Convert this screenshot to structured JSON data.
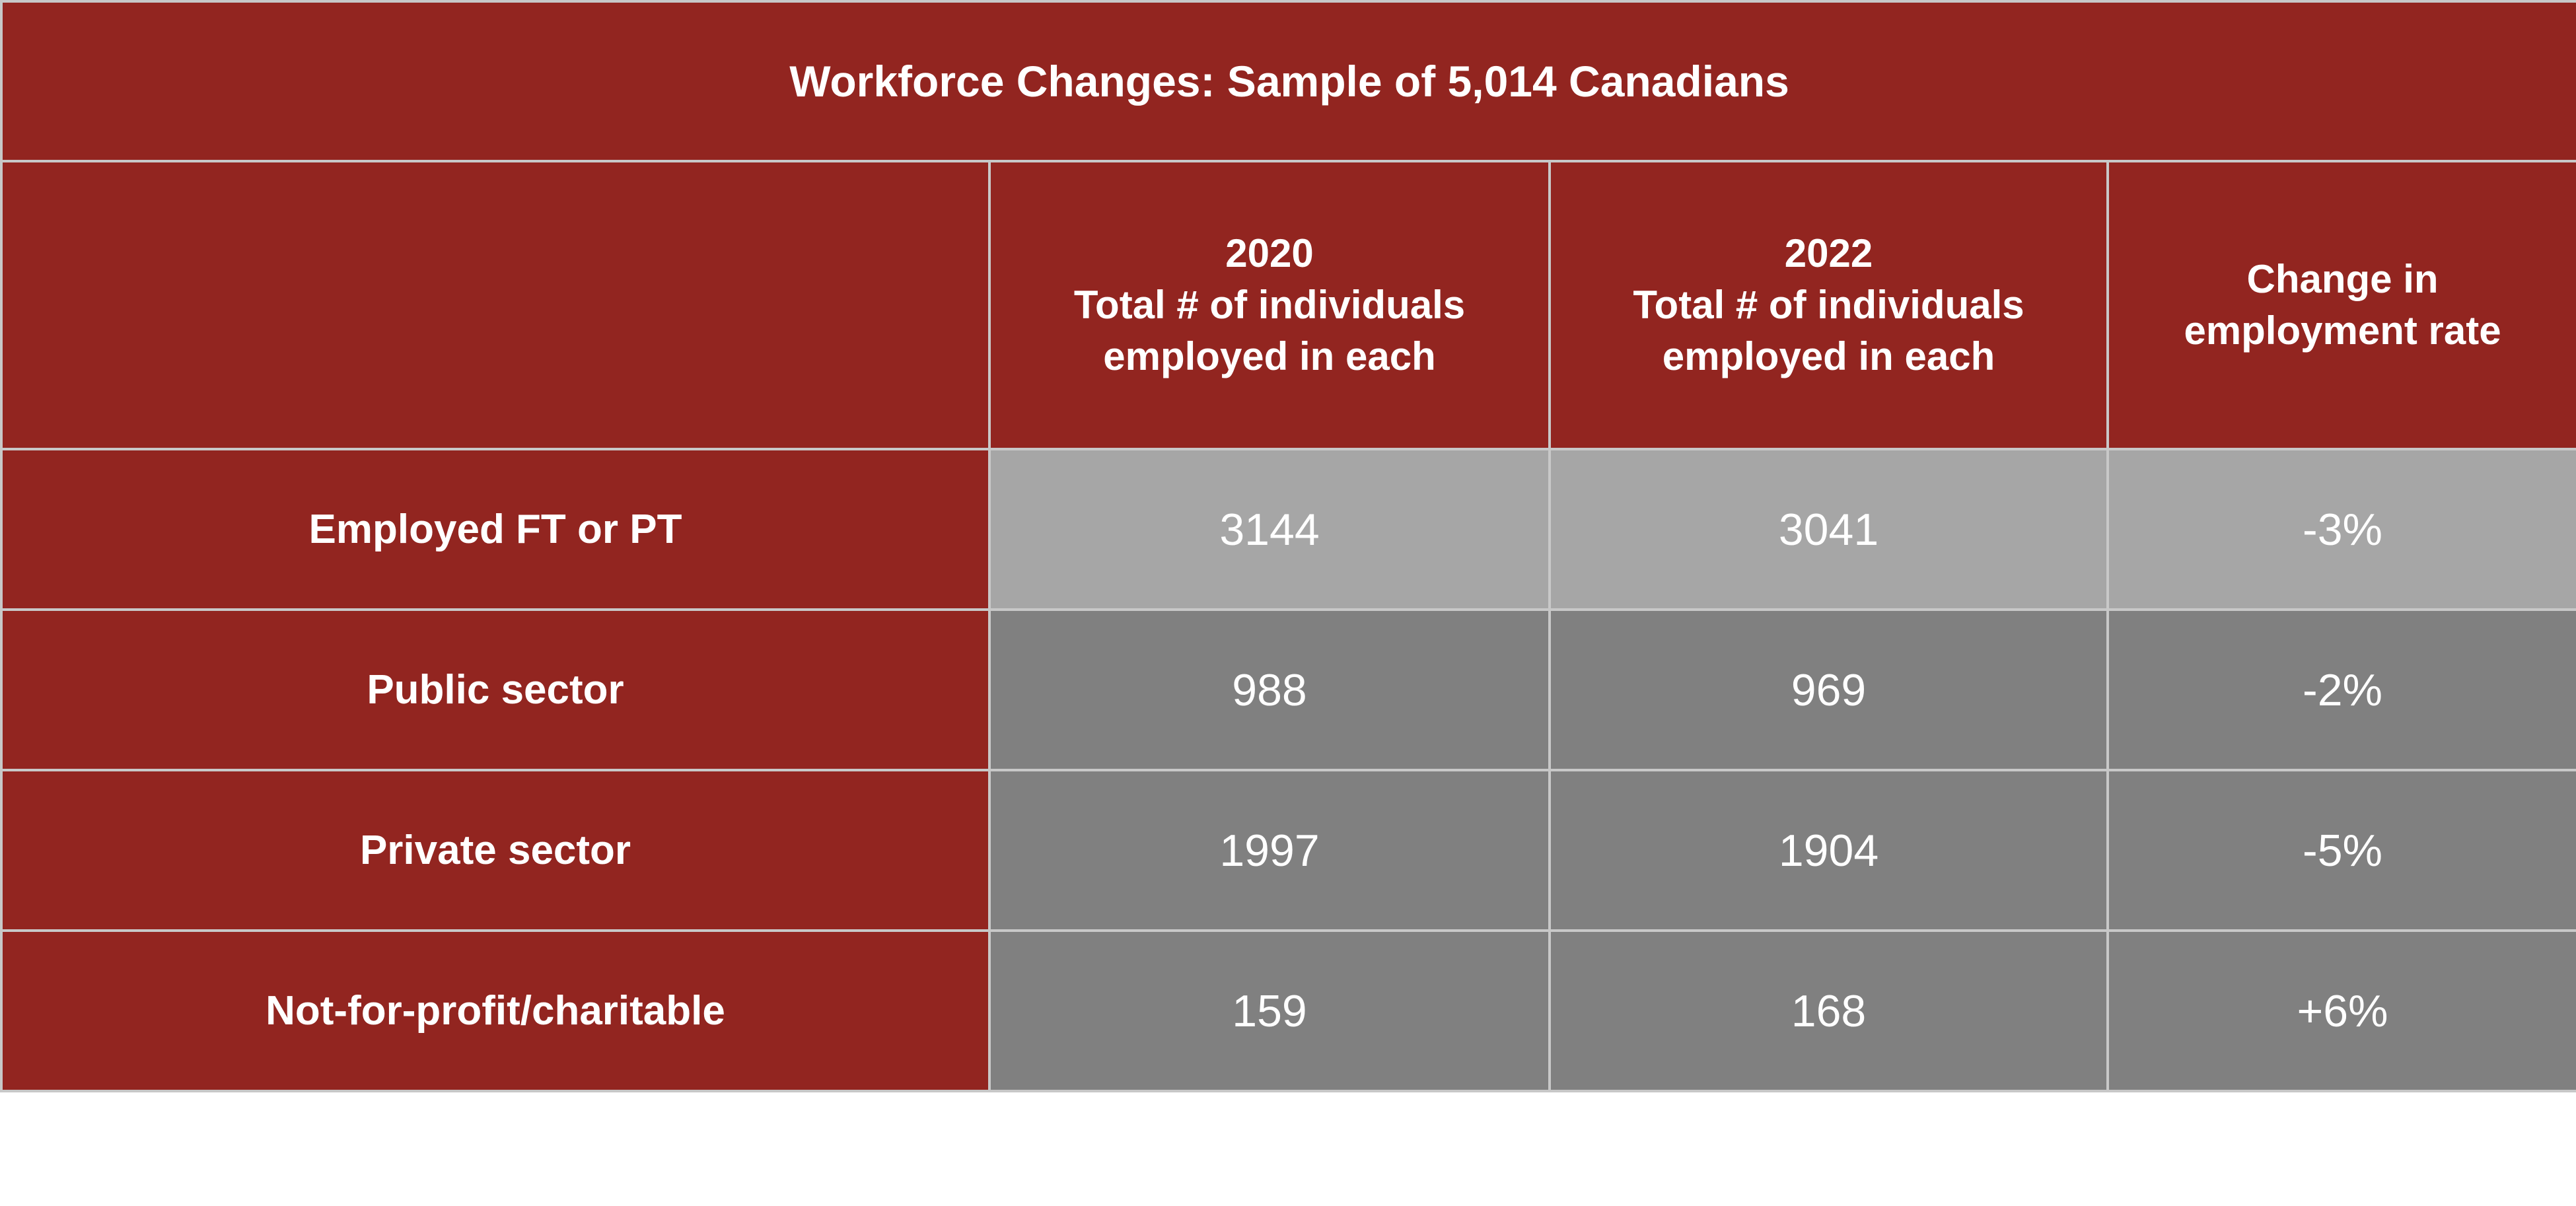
{
  "table": {
    "title": "Workforce Changes: Sample of 5,014 Canadians",
    "headers": [
      {
        "lines": []
      },
      {
        "lines": [
          "2020",
          "Total # of individuals",
          "employed in each"
        ]
      },
      {
        "lines": [
          "2022",
          "Total # of individuals",
          "employed in each"
        ]
      },
      {
        "lines": [
          "Change in",
          "employment rate"
        ]
      }
    ],
    "rows": [
      {
        "label": "Employed FT or PT",
        "y2020": "3144",
        "y2022": "3041",
        "change": "-3%"
      },
      {
        "label": "Public sector",
        "y2020": "988",
        "y2022": "969",
        "change": "-2%"
      },
      {
        "label": "Private sector",
        "y2020": "1997",
        "y2022": "1904",
        "change": "-5%"
      },
      {
        "label": "Not-for-profit/charitable",
        "y2020": "159",
        "y2022": "168",
        "change": "+6%"
      }
    ],
    "colors": {
      "header": "#922520",
      "highlight_row": "#a6a6a6",
      "row": "#808080",
      "border": "#c8c8c8"
    }
  }
}
